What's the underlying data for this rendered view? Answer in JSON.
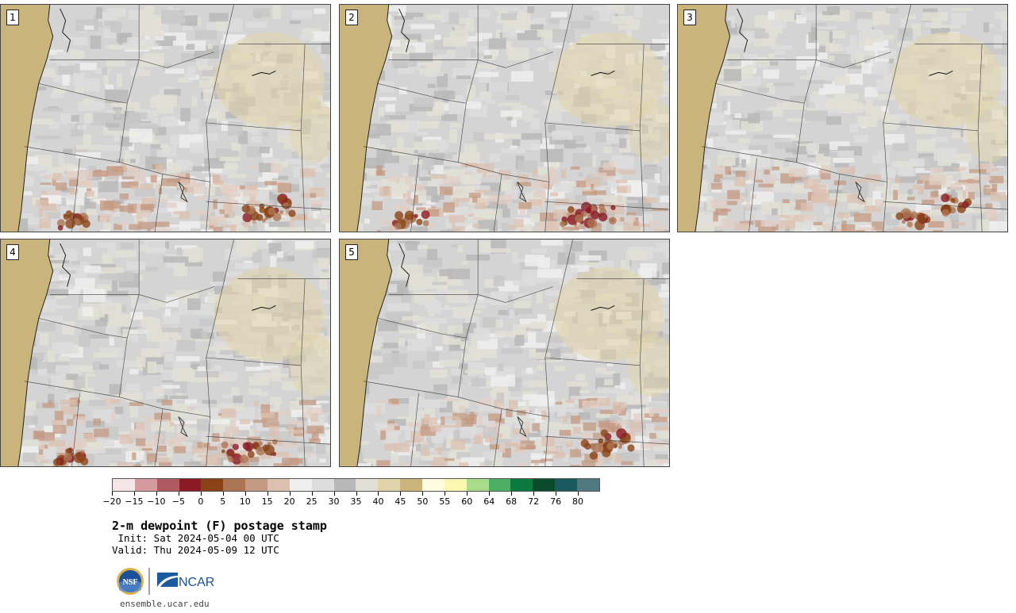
{
  "panels": [
    {
      "label": "1"
    },
    {
      "label": "2"
    },
    {
      "label": "3"
    },
    {
      "label": "4"
    },
    {
      "label": "5"
    }
  ],
  "colorbar": {
    "colors": [
      "#f4e6e6",
      "#d49a9e",
      "#b05a60",
      "#8c1a24",
      "#8a4316",
      "#ac7654",
      "#c49a82",
      "#dcc0b0",
      "#efefef",
      "#dddddd",
      "#b8b8b8",
      "#e2e0d6",
      "#e2d4aa",
      "#cbb57a",
      "#fffde0",
      "#fbf7b0",
      "#a9dc8a",
      "#4caf64",
      "#0a7a40",
      "#0c4a2c",
      "#1a5a5e",
      "#517a80"
    ],
    "ticks": [
      "−20",
      "−15",
      "−10",
      "−5",
      "0",
      "5",
      "10",
      "15",
      "20",
      "25",
      "30",
      "35",
      "40",
      "45",
      "50",
      "55",
      "60",
      "64",
      "68",
      "72",
      "76",
      "80"
    ]
  },
  "title": "2-m dewpoint (F) postage stamp",
  "init": " Init: Sat 2024-05-04 00 UTC",
  "valid": "Valid: Thu 2024-05-09 12 UTC",
  "logo_nsf": "NSF",
  "logo_ncar": "NCAR",
  "url": "ensemble.ucar.edu"
}
